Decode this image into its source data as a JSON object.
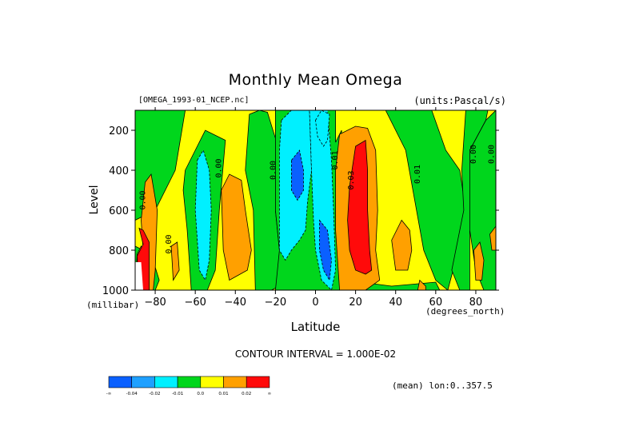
{
  "chart_data": {
    "type": "heatmap",
    "title": "Monthly Mean Omega",
    "dataset": "[OMEGA_1993-01_NCEP.nc]",
    "units": "(units:Pascal/s)",
    "xlabel": "Latitude",
    "x_unit": "(degrees_north)",
    "ylabel": "Level",
    "y_unit": "(millibar)",
    "xlim": [
      -90,
      90
    ],
    "ylim": [
      1000,
      100
    ],
    "x_ticks": [
      -80,
      -60,
      -40,
      -20,
      0,
      20,
      40,
      60,
      80
    ],
    "y_ticks": [
      200,
      400,
      600,
      800,
      1000
    ],
    "contour_interval": "CONTOUR INTERVAL = 1.000E-02",
    "mean_note": "(mean) lon:0..357.5",
    "colorbar": {
      "labels": [
        "-∞",
        "-0.04",
        "-0.02",
        "-0.01",
        "0.0",
        "0.01",
        "0.02",
        "∞"
      ],
      "colors": [
        "#0a60ff",
        "#1fa0ff",
        "#00f0ff",
        "#00d61c",
        "#ffff00",
        "#ffa000",
        "#ff0a0a"
      ]
    },
    "contour_labels": [
      {
        "text": "0.00",
        "lon": -85,
        "lev": 550
      },
      {
        "text": "0.00",
        "lon": -72,
        "lev": 770
      },
      {
        "text": "0.00",
        "lon": -47,
        "lev": 390
      },
      {
        "text": "0.00",
        "lon": -20,
        "lev": 400
      },
      {
        "text": "0.01",
        "lon": 11,
        "lev": 350
      },
      {
        "text": "0.03",
        "lon": 19,
        "lev": 450
      },
      {
        "text": "0.01",
        "lon": 52,
        "lev": 420
      },
      {
        "text": "0.00",
        "lon": 80,
        "lev": 320
      },
      {
        "text": "0.00",
        "lon": 89,
        "lev": 320
      }
    ],
    "regions": [
      {
        "level": "green",
        "points": [
          [
            -90,
            100
          ],
          [
            -65,
            100
          ],
          [
            -70,
            400
          ],
          [
            -80,
            600
          ],
          [
            -90,
            650
          ]
        ]
      },
      {
        "level": "green",
        "points": [
          [
            -90,
            780
          ],
          [
            -82,
            820
          ],
          [
            -78,
            950
          ],
          [
            -80,
            1000
          ],
          [
            -90,
            1000
          ]
        ]
      },
      {
        "level": "green",
        "points": [
          [
            -65,
            400
          ],
          [
            -55,
            200
          ],
          [
            -45,
            250
          ],
          [
            -48,
            600
          ],
          [
            -50,
            900
          ],
          [
            -54,
            1000
          ],
          [
            -62,
            1000
          ],
          [
            -64,
            700
          ],
          [
            -66,
            500
          ]
        ]
      },
      {
        "level": "green",
        "points": [
          [
            -33,
            120
          ],
          [
            -28,
            100
          ],
          [
            -24,
            110
          ],
          [
            -20,
            240
          ],
          [
            -20,
            600
          ],
          [
            -18,
            800
          ],
          [
            -18,
            980
          ],
          [
            -22,
            1000
          ],
          [
            -30,
            1000
          ],
          [
            -31,
            600
          ],
          [
            -35,
            400
          ]
        ]
      },
      {
        "level": "green",
        "points": [
          [
            -20,
            100
          ],
          [
            10,
            100
          ],
          [
            10,
            260
          ],
          [
            13,
            200
          ],
          [
            13,
            1000
          ],
          [
            -20,
            1000
          ],
          [
            -18,
            800
          ],
          [
            -20,
            600
          ],
          [
            -20,
            240
          ]
        ]
      },
      {
        "level": "green",
        "points": [
          [
            35,
            100
          ],
          [
            58,
            100
          ],
          [
            65,
            300
          ],
          [
            72,
            400
          ],
          [
            75,
            600
          ],
          [
            70,
            850
          ],
          [
            66,
            1000
          ],
          [
            60,
            950
          ],
          [
            54,
            800
          ],
          [
            45,
            300
          ]
        ]
      },
      {
        "level": "green",
        "points": [
          [
            75,
            100
          ],
          [
            86,
            100
          ],
          [
            85,
            150
          ],
          [
            77,
            300
          ],
          [
            77,
            1000
          ],
          [
            72,
            1000
          ],
          [
            68,
            900
          ],
          [
            74,
            600
          ],
          [
            73,
            400
          ]
        ]
      },
      {
        "level": "green",
        "points": [
          [
            77,
            300
          ],
          [
            85,
            150
          ],
          [
            90,
            100
          ],
          [
            90,
            1000
          ],
          [
            84,
            1000
          ],
          [
            80,
            900
          ],
          [
            77,
            700
          ]
        ]
      },
      {
        "level": "green",
        "points": [
          [
            13,
            1000
          ],
          [
            15,
            950
          ],
          [
            38,
            980
          ],
          [
            60,
            960
          ],
          [
            62,
            1000
          ]
        ]
      },
      {
        "level": "cyan",
        "points": [
          [
            -59,
            350
          ],
          [
            -56,
            300
          ],
          [
            -53,
            400
          ],
          [
            -52,
            600
          ],
          [
            -53,
            850
          ],
          [
            -55,
            950
          ],
          [
            -58,
            900
          ],
          [
            -60,
            600
          ]
        ]
      },
      {
        "level": "cyan",
        "points": [
          [
            -17,
            150
          ],
          [
            -12,
            100
          ],
          [
            -3,
            100
          ],
          [
            -2,
            400
          ],
          [
            -4,
            560
          ],
          [
            -5,
            700
          ],
          [
            -8,
            750
          ],
          [
            -12,
            800
          ],
          [
            -15,
            850
          ],
          [
            -18,
            800
          ],
          [
            -18,
            600
          ],
          [
            -18,
            300
          ]
        ]
      },
      {
        "level": "cyan",
        "points": [
          [
            -3,
            100
          ],
          [
            6,
            100
          ],
          [
            8,
            350
          ],
          [
            9,
            600
          ],
          [
            10,
            900
          ],
          [
            8,
            1000
          ],
          [
            3,
            950
          ],
          [
            0,
            800
          ],
          [
            -1,
            650
          ],
          [
            -2,
            400
          ]
        ]
      },
      {
        "level": "cyan",
        "points": [
          [
            0,
            150
          ],
          [
            3,
            100
          ],
          [
            7,
            120
          ],
          [
            6,
            250
          ],
          [
            4,
            280
          ],
          [
            1,
            230
          ]
        ]
      },
      {
        "level": "blue",
        "points": [
          [
            -12,
            350
          ],
          [
            -8,
            300
          ],
          [
            -6,
            400
          ],
          [
            -6,
            500
          ],
          [
            -9,
            550
          ],
          [
            -12,
            500
          ]
        ]
      },
      {
        "level": "blue",
        "points": [
          [
            2,
            650
          ],
          [
            6,
            700
          ],
          [
            8,
            850
          ],
          [
            7,
            950
          ],
          [
            4,
            900
          ],
          [
            2,
            800
          ]
        ]
      },
      {
        "level": "orange",
        "points": [
          [
            -89,
            820
          ],
          [
            -87,
            780
          ],
          [
            -85,
            850
          ],
          [
            -85,
            960
          ],
          [
            -88,
            1000
          ],
          [
            -90,
            990
          ]
        ]
      },
      {
        "level": "orange",
        "points": [
          [
            -85,
            460
          ],
          [
            -82,
            420
          ],
          [
            -79,
            600
          ],
          [
            -80,
            900
          ],
          [
            -81,
            1000
          ],
          [
            -88,
            1000
          ],
          [
            -86,
            800
          ],
          [
            -87,
            650
          ]
        ]
      },
      {
        "level": "orange",
        "points": [
          [
            -72,
            780
          ],
          [
            -69,
            760
          ],
          [
            -68,
            900
          ],
          [
            -71,
            950
          ]
        ]
      },
      {
        "level": "orange",
        "points": [
          [
            -47,
            500
          ],
          [
            -43,
            420
          ],
          [
            -37,
            450
          ],
          [
            -35,
            600
          ],
          [
            -32,
            800
          ],
          [
            -34,
            900
          ],
          [
            -43,
            950
          ],
          [
            -46,
            800
          ]
        ]
      },
      {
        "level": "orange",
        "points": [
          [
            10,
            400
          ],
          [
            12,
            220
          ],
          [
            20,
            180
          ],
          [
            26,
            190
          ],
          [
            30,
            300
          ],
          [
            31,
            600
          ],
          [
            30,
            800
          ],
          [
            32,
            950
          ],
          [
            25,
            1000
          ],
          [
            12,
            1000
          ],
          [
            10,
            700
          ]
        ]
      },
      {
        "level": "orange",
        "points": [
          [
            38,
            750
          ],
          [
            43,
            650
          ],
          [
            47,
            700
          ],
          [
            48,
            800
          ],
          [
            46,
            900
          ],
          [
            40,
            900
          ]
        ]
      },
      {
        "level": "orange",
        "points": [
          [
            51,
            1000
          ],
          [
            52,
            950
          ],
          [
            55,
            980
          ],
          [
            55,
            1000
          ]
        ]
      },
      {
        "level": "orange",
        "points": [
          [
            79,
            800
          ],
          [
            82,
            760
          ],
          [
            84,
            850
          ],
          [
            83,
            950
          ],
          [
            80,
            950
          ]
        ]
      },
      {
        "level": "orange",
        "points": [
          [
            87,
            720
          ],
          [
            90,
            680
          ],
          [
            90,
            800
          ],
          [
            88,
            800
          ]
        ]
      },
      {
        "level": "red",
        "points": [
          [
            -88,
            690
          ],
          [
            -86,
            700
          ],
          [
            -83,
            760
          ],
          [
            -83,
            1000
          ],
          [
            -88,
            1000
          ],
          [
            -89,
            830
          ],
          [
            -86,
            770
          ]
        ]
      },
      {
        "level": "red",
        "points": [
          [
            17,
            480
          ],
          [
            20,
            280
          ],
          [
            25,
            250
          ],
          [
            26,
            400
          ],
          [
            26,
            600
          ],
          [
            27,
            800
          ],
          [
            28,
            900
          ],
          [
            25,
            920
          ],
          [
            20,
            900
          ],
          [
            17,
            800
          ],
          [
            16,
            650
          ]
        ]
      },
      {
        "level": "white",
        "points": [
          [
            -90,
            860
          ],
          [
            -87,
            860
          ],
          [
            -86,
            1000
          ],
          [
            -90,
            1000
          ]
        ]
      }
    ]
  }
}
